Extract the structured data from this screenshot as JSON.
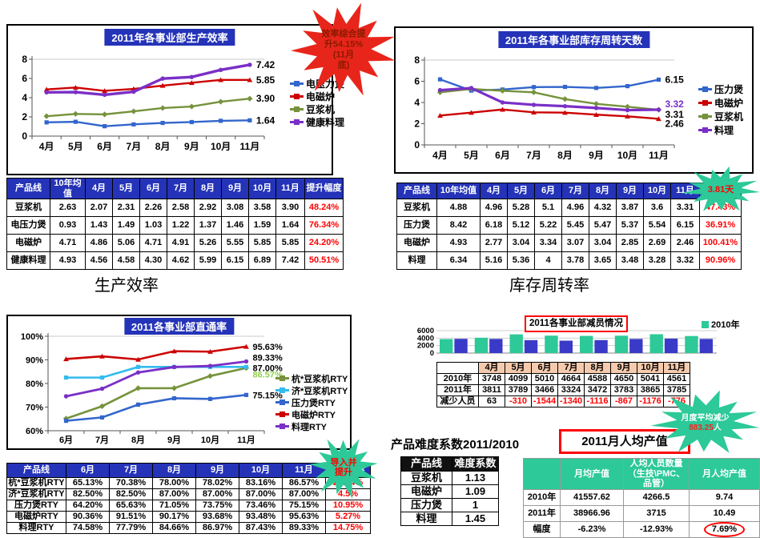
{
  "section_labels": {
    "left": "生产效率",
    "right": "库存周转率"
  },
  "bottom_right": {
    "difficulty_heading": "产品难度系数2011/2010",
    "productivity_heading": "2011月人均产值",
    "bar_legend": "2010年"
  },
  "colors": {
    "header_blue": "#2433b8",
    "bar_green": "#2dc998",
    "bar_blue": "#3a3ac8",
    "burst_red": "#e8251b",
    "burst_green": "#2dc998",
    "highlight_red": "#ff0000"
  },
  "chart_data": [
    {
      "id": "efficiency",
      "type": "line",
      "title": "2011年各事业部生产效率",
      "categories": [
        "4月",
        "5月",
        "6月",
        "7月",
        "8月",
        "9月",
        "10月",
        "11月"
      ],
      "ylim": [
        0,
        8
      ],
      "yticks": [
        0,
        2,
        4,
        6,
        8
      ],
      "legend_position": "right",
      "grid": "top-only",
      "series": [
        {
          "name": "电压力煲",
          "color": "#3366cc",
          "marker": "square",
          "lw": 2.4,
          "values": [
            1.43,
            1.49,
            1.03,
            1.22,
            1.37,
            1.46,
            1.59,
            1.64
          ],
          "end_label": "1.64",
          "end_dy": 0
        },
        {
          "name": "电磁炉",
          "color": "#cc0000",
          "marker": "triangle",
          "lw": 2.4,
          "values": [
            4.86,
            5.06,
            4.71,
            4.91,
            5.26,
            5.55,
            5.85,
            5.85
          ],
          "end_label": "5.85",
          "end_dy": 0
        },
        {
          "name": "豆浆机",
          "color": "#76923c",
          "marker": "diamond",
          "lw": 2.4,
          "values": [
            2.07,
            2.31,
            2.26,
            2.58,
            2.92,
            3.08,
            3.58,
            3.9
          ],
          "end_label": "3.90",
          "end_dy": 0
        },
        {
          "name": "健康料理",
          "color": "#7a2fc6",
          "marker": "circle",
          "lw": 3.4,
          "values": [
            4.56,
            4.58,
            4.3,
            4.62,
            5.99,
            6.15,
            6.89,
            7.42
          ],
          "end_label": "7.42",
          "end_dy": 0
        }
      ]
    },
    {
      "id": "inventory",
      "type": "line",
      "title": "2011年各事业部库存周转天数",
      "categories": [
        "4月",
        "5月",
        "6月",
        "7月",
        "8月",
        "9月",
        "10月",
        "11月"
      ],
      "ylim": [
        0,
        8
      ],
      "yticks": [
        0,
        2,
        4,
        6,
        8
      ],
      "legend_position": "right",
      "grid": "top-only",
      "series": [
        {
          "name": "压力煲",
          "color": "#3366cc",
          "marker": "square",
          "lw": 2.4,
          "values": [
            6.18,
            5.12,
            5.22,
            5.45,
            5.47,
            5.37,
            5.54,
            6.15
          ],
          "end_label": "6.15",
          "end_dy": 0
        },
        {
          "name": "电磁炉",
          "color": "#cc0000",
          "marker": "triangle",
          "lw": 2.4,
          "values": [
            2.77,
            3.04,
            3.34,
            3.07,
            3.04,
            2.85,
            2.69,
            2.46
          ],
          "end_label": "2.46",
          "end_dy": 6
        },
        {
          "name": "豆浆机",
          "color": "#76923c",
          "marker": "diamond",
          "lw": 2.4,
          "values": [
            4.96,
            5.28,
            5.1,
            4.96,
            4.32,
            3.87,
            3.6,
            3.31
          ],
          "end_label": "3.31",
          "end_dy": 6
        },
        {
          "name": "料理",
          "color": "#7a2fc6",
          "marker": "circle",
          "lw": 3.2,
          "values": [
            5.16,
            5.36,
            4.0,
            3.78,
            3.65,
            3.48,
            3.28,
            3.32
          ],
          "end_label": "3.32",
          "end_dy": -7,
          "end_color": "#7a2fc6"
        }
      ]
    },
    {
      "id": "rty",
      "type": "line",
      "title": "2011各事业部直通率",
      "categories": [
        "6月",
        "7月",
        "8月",
        "9月",
        "10月",
        "11月"
      ],
      "ylim": [
        60,
        100
      ],
      "yticks": [
        60,
        70,
        80,
        90,
        100
      ],
      "ysuffix": "%",
      "legend_position": "right",
      "grid": "top-only",
      "series": [
        {
          "name": "杭*豆浆机RTY",
          "color": "#76923c",
          "marker": "diamond",
          "lw": 2.6,
          "values": [
            65.13,
            70.38,
            78.0,
            78.02,
            83.16,
            86.57
          ],
          "end_label": "86.57%",
          "end_dy": 8,
          "end_color": "#92d050"
        },
        {
          "name": "济*豆浆机RTY",
          "color": "#33bbee",
          "marker": "square",
          "lw": 2.6,
          "values": [
            82.5,
            82.5,
            87.0,
            87.0,
            87.0,
            87.0
          ],
          "end_label": "87.00%",
          "end_dy": 1
        },
        {
          "name": "压力煲RTY",
          "color": "#3366cc",
          "marker": "square",
          "lw": 2.6,
          "values": [
            64.2,
            65.63,
            71.05,
            73.75,
            73.46,
            75.15
          ],
          "end_label": "75.15%",
          "end_dy": 0
        },
        {
          "name": "电磁炉RTY",
          "color": "#cc0000",
          "marker": "triangle",
          "lw": 2.6,
          "values": [
            90.36,
            91.51,
            90.17,
            93.68,
            93.48,
            95.63
          ],
          "end_label": "95.63%",
          "end_dy": 0
        },
        {
          "name": "料理RTY",
          "color": "#7a2fc6",
          "marker": "circle",
          "lw": 2.8,
          "values": [
            74.58,
            77.79,
            84.66,
            86.97,
            87.43,
            89.33
          ],
          "end_label": "89.33%",
          "end_dy": -5
        }
      ]
    },
    {
      "id": "headcount",
      "type": "bar",
      "title": "2011各事业部减员情况",
      "categories": [
        "4月",
        "5月",
        "6月",
        "7月",
        "8月",
        "9月",
        "10月",
        "11月"
      ],
      "ylim": [
        0,
        6000
      ],
      "yticks": [
        0,
        2000,
        4000,
        6000
      ],
      "legend": [
        "2010年"
      ],
      "series": [
        {
          "name": "2010年",
          "color": "#2dc998",
          "values": [
            3748,
            4099,
            5010,
            4664,
            4588,
            4650,
            5041,
            4561
          ]
        },
        {
          "name": "2011年",
          "color": "#3a3ac8",
          "values": [
            3811,
            3789,
            3466,
            3324,
            3472,
            3783,
            3865,
            3785
          ]
        }
      ]
    }
  ],
  "tables": [
    {
      "id": "efficiency-table",
      "headers": [
        "产品线",
        "10年均值",
        "4月",
        "5月",
        "6月",
        "7月",
        "8月",
        "9月",
        "10月",
        "11月",
        "提升幅度"
      ],
      "rows": [
        [
          "豆浆机",
          "2.63",
          "2.07",
          "2.31",
          "2.26",
          "2.58",
          "2.92",
          "3.08",
          "3.58",
          "3.90",
          "48.24%"
        ],
        [
          "电压力煲",
          "0.93",
          "1.43",
          "1.49",
          "1.03",
          "1.22",
          "1.37",
          "1.46",
          "1.59",
          "1.64",
          "76.34%"
        ],
        [
          "电磁炉",
          "4.71",
          "4.86",
          "5.06",
          "4.71",
          "4.91",
          "5.26",
          "5.55",
          "5.85",
          "5.85",
          "24.20%"
        ],
        [
          "健康料理",
          "4.93",
          "4.56",
          "4.58",
          "4.30",
          "4.62",
          "5.99",
          "6.15",
          "6.89",
          "7.42",
          "50.51%"
        ]
      ]
    },
    {
      "id": "inventory-table",
      "headers": [
        "产品线",
        "10年均值",
        "4月",
        "5月",
        "6月",
        "7月",
        "8月",
        "9月",
        "10月",
        "11月",
        ""
      ],
      "rows": [
        [
          "豆浆机",
          "4.88",
          "4.96",
          "5.28",
          "5.1",
          "4.96",
          "4.32",
          "3.87",
          "3.6",
          "3.31",
          "47.43%"
        ],
        [
          "压力煲",
          "8.42",
          "6.18",
          "5.12",
          "5.22",
          "5.45",
          "5.47",
          "5.37",
          "5.54",
          "6.15",
          "36.91%"
        ],
        [
          "电磁炉",
          "4.93",
          "2.77",
          "3.04",
          "3.34",
          "3.07",
          "3.04",
          "2.85",
          "2.69",
          "2.46",
          "100.41%"
        ],
        [
          "料理",
          "6.34",
          "5.16",
          "5.36",
          "4",
          "3.78",
          "3.65",
          "3.48",
          "3.28",
          "3.32",
          "90.96%"
        ]
      ]
    },
    {
      "id": "rty-table",
      "headers": [
        "产品线",
        "6月",
        "7月",
        "8月",
        "9月",
        "10月",
        "11月",
        "提升幅度"
      ],
      "rows": [
        [
          "杭*豆浆机RTY",
          "65.13%",
          "70.38%",
          "78.00%",
          "78.02%",
          "83.16%",
          "86.57%",
          "21.44%"
        ],
        [
          "济*豆浆机RTY",
          "82.50%",
          "82.50%",
          "87.00%",
          "87.00%",
          "87.00%",
          "87.00%",
          "4.5%"
        ],
        [
          "压力煲RTY",
          "64.20%",
          "65.63%",
          "71.05%",
          "73.75%",
          "73.46%",
          "75.15%",
          "10.95%"
        ],
        [
          "电磁炉RTY",
          "90.36%",
          "91.51%",
          "90.17%",
          "93.68%",
          "93.48%",
          "95.63%",
          "5.27%"
        ],
        [
          "料理RTY",
          "74.58%",
          "77.79%",
          "84.66%",
          "86.97%",
          "87.43%",
          "89.33%",
          "14.75%"
        ]
      ]
    },
    {
      "id": "headcount-table",
      "headers": [
        "",
        "4月",
        "5月",
        "6月",
        "7月",
        "8月",
        "9月",
        "10月",
        "11月"
      ],
      "rows": [
        [
          "2010年",
          "3748",
          "4099",
          "5010",
          "4664",
          "4588",
          "4650",
          "5041",
          "4561"
        ],
        [
          "2011年",
          "3811",
          "3789",
          "3466",
          "3324",
          "3472",
          "3783",
          "3865",
          "3785"
        ],
        [
          "减少人员",
          "63",
          "-310",
          "-1544",
          "-1340",
          "-1116",
          "-867",
          "-1176",
          "-776"
        ]
      ]
    },
    {
      "id": "difficulty-table",
      "headers": [
        "产品线",
        "难度系数"
      ],
      "rows": [
        [
          "豆浆机",
          "1.13"
        ],
        [
          "电磁炉",
          "1.09"
        ],
        [
          "压力煲",
          "1"
        ],
        [
          "料理",
          "1.45"
        ]
      ]
    },
    {
      "id": "productivity-table",
      "headers": [
        "",
        "月均产值",
        "人均人员数量（生技\\PMC、品管）",
        "月人均产值"
      ],
      "rows": [
        [
          "2010年",
          "41557.62",
          "4266.5",
          "9.74"
        ],
        [
          "2011年",
          "38966.96",
          "3715",
          "10.49"
        ],
        [
          "幅度",
          "-6.23%",
          "-12.93%",
          "7.69%"
        ]
      ]
    }
  ],
  "bursts": [
    {
      "id": "efficiency-burst",
      "fill": "#e8251b",
      "lines": [
        [
          {
            "t": "效率综合提",
            "c": "#8b1a00"
          }
        ],
        [
          {
            "t": "升54.15%",
            "c": "#8b1a00"
          }
        ],
        [
          {
            "t": "(11月",
            "c": "#8b1a00"
          }
        ],
        [
          {
            "t": "底)",
            "c": "#8b1a00"
          }
        ]
      ]
    },
    {
      "id": "inventory-burst",
      "fill": "#2dc998",
      "lines": [
        [
          {
            "t": "3.81天",
            "c": "#ff0000"
          }
        ]
      ]
    },
    {
      "id": "rty-burst",
      "fill": "#2dc998",
      "lines": [
        [
          {
            "t": "导入并",
            "c": "#ff0000"
          }
        ],
        [
          {
            "t": "提升",
            "c": "#ff0000"
          }
        ]
      ]
    },
    {
      "id": "headcount-burst",
      "fill": "#2dc998",
      "lines": [
        [
          {
            "t": "月度平均减少",
            "c": "#ffffff"
          }
        ],
        [
          {
            "t": "883.25",
            "c": "#ff2020"
          },
          {
            "t": "人",
            "c": "#ffffff"
          }
        ]
      ]
    }
  ]
}
